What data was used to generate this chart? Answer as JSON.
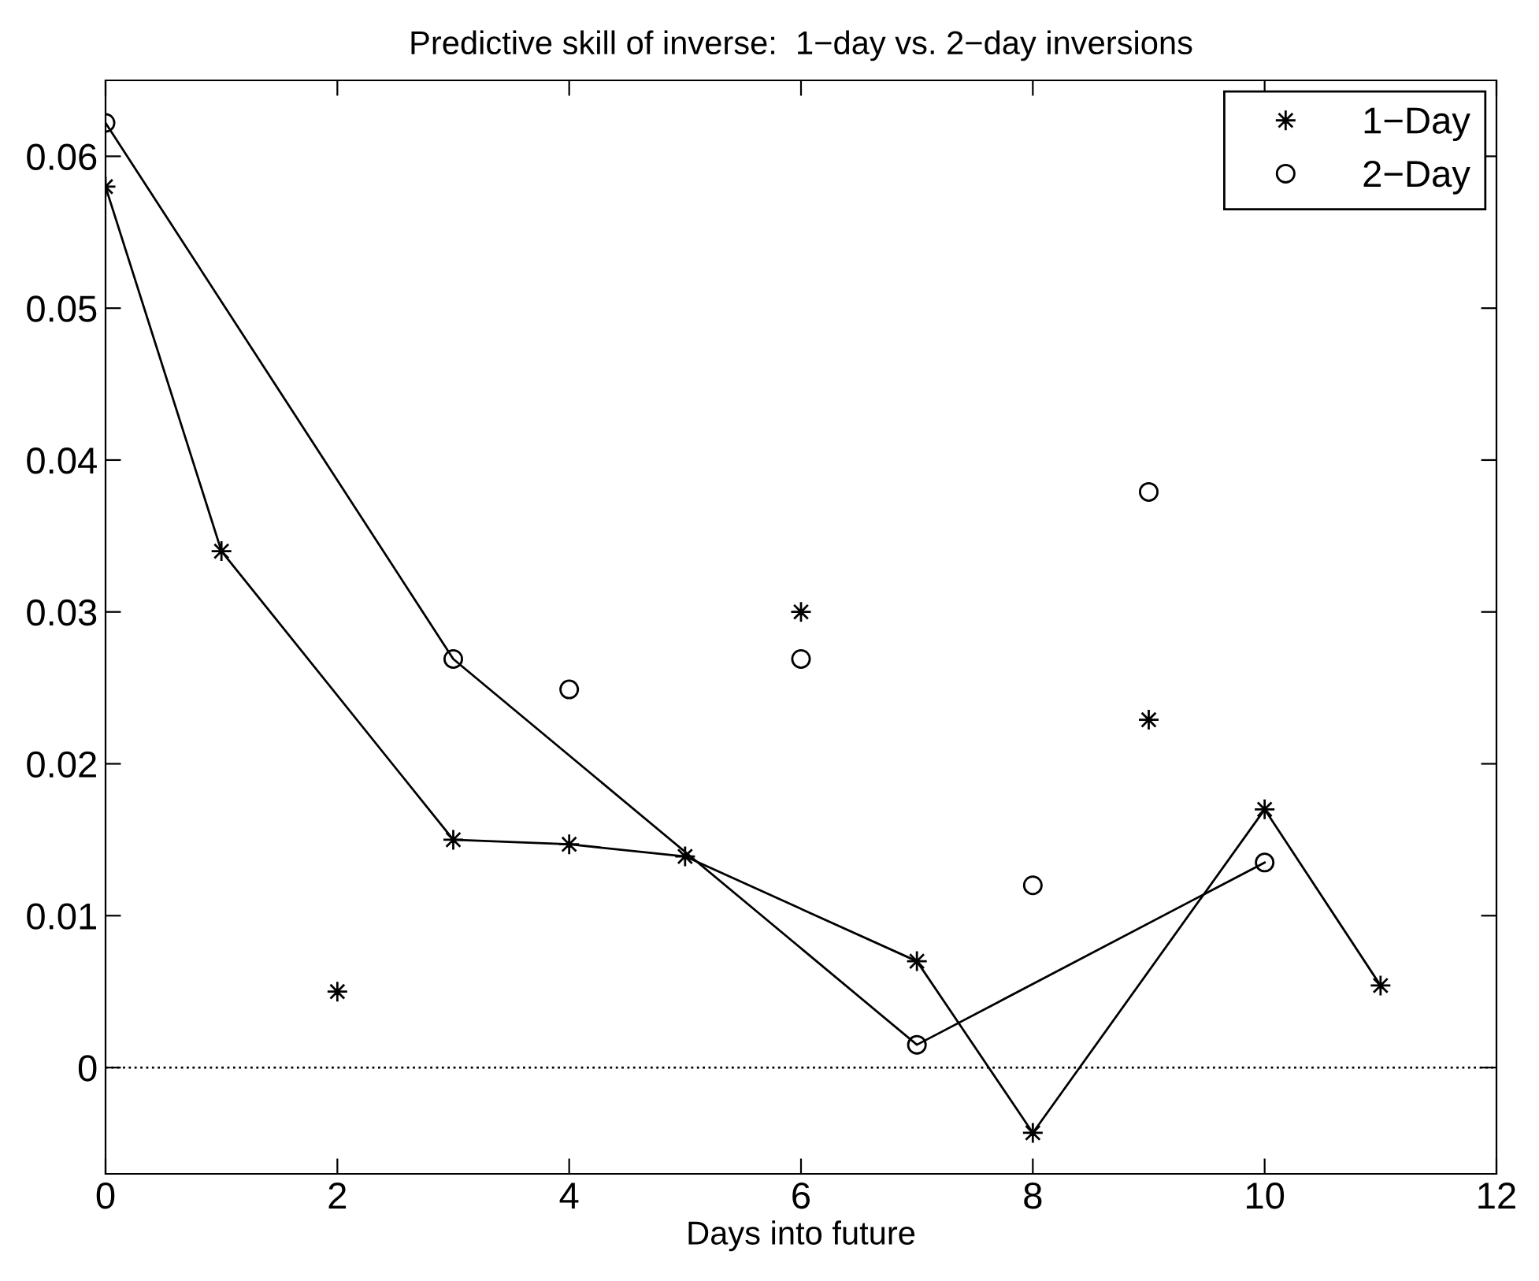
{
  "chart_data": {
    "type": "scatter",
    "title": "Predictive skill of inverse:  1−day vs. 2−day inversions",
    "xlabel": "Days into future",
    "series": [
      {
        "name": "1−Day",
        "marker": "star",
        "color": "#000000",
        "x": [
          0,
          1,
          2,
          3,
          4,
          5,
          6,
          7,
          8,
          9,
          10,
          11
        ],
        "values": [
          0.058,
          0.034,
          0.005,
          0.015,
          0.0147,
          0.0139,
          0.03,
          0.007,
          -0.0043,
          0.0229,
          0.017,
          0.0054
        ]
      },
      {
        "name": "2−Day",
        "marker": "circle",
        "color": "#000000",
        "x": [
          0,
          3,
          4,
          6,
          7,
          8,
          9,
          10
        ],
        "values": [
          0.0622,
          0.0269,
          0.0249,
          0.0269,
          0.0015,
          0.012,
          0.0379,
          0.0135
        ]
      },
      {
        "type": "line",
        "marker": "none",
        "line_style": "solid",
        "color": "#000000",
        "x": [
          0,
          1,
          3,
          4,
          5,
          7,
          8,
          10,
          11
        ],
        "values": [
          0.058,
          0.034,
          0.015,
          0.0147,
          0.0139,
          0.007,
          -0.0043,
          0.017,
          0.0054
        ]
      },
      {
        "type": "line",
        "marker": "none",
        "line_style": "solid",
        "color": "#000000",
        "x": [
          0,
          3,
          7,
          10
        ],
        "values": [
          0.0622,
          0.0269,
          0.0015,
          0.0135
        ]
      }
    ],
    "xlim": [
      0,
      12
    ],
    "xticks": [
      0,
      2,
      4,
      6,
      8,
      10,
      12
    ],
    "ylim": [
      -0.007,
      0.065
    ],
    "yticks": [
      0,
      0.01,
      0.02,
      0.03,
      0.04,
      0.05,
      0.06
    ],
    "ref_lines": [
      {
        "axis": "y",
        "value": 0,
        "line_style": "dotted",
        "color": "#000000"
      }
    ],
    "grid": false,
    "legend": "top right"
  }
}
